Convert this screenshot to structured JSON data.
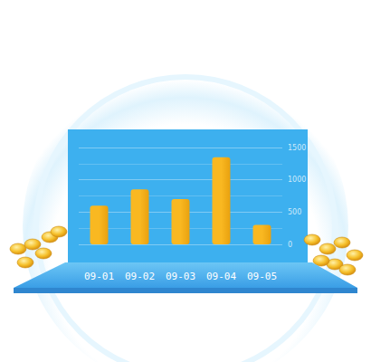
{
  "chart_data": {
    "type": "bar",
    "categories": [
      "09-01",
      "09-02",
      "09-03",
      "09-04",
      "09-05"
    ],
    "values": [
      600,
      850,
      700,
      1350,
      300
    ],
    "color": "#f9b821",
    "ylim": [
      0,
      1500
    ],
    "yticks": [
      0,
      500,
      1000,
      1500
    ],
    "grid": true
  }
}
